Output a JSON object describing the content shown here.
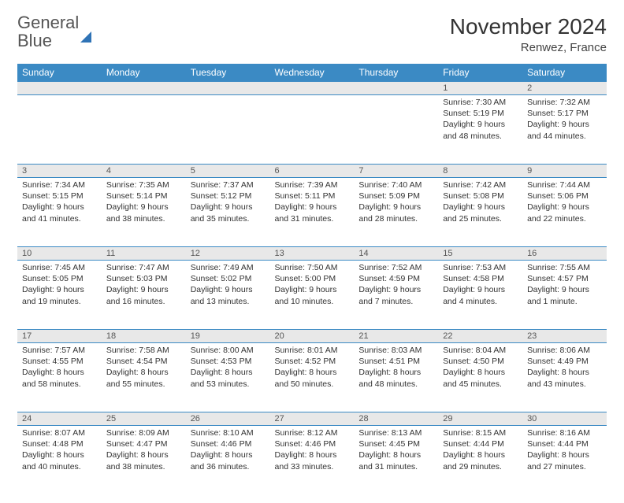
{
  "logo": {
    "word1": "General",
    "word2": "Blue"
  },
  "title": "November 2024",
  "location": "Renwez, France",
  "colors": {
    "header_bg": "#3b8ac4",
    "header_text": "#ffffff",
    "daynum_bg": "#e8e8e8",
    "cell_border": "#3b8ac4",
    "text": "#333333",
    "logo_gray": "#555555",
    "logo_blue": "#2f73b6"
  },
  "weekdays": [
    "Sunday",
    "Monday",
    "Tuesday",
    "Wednesday",
    "Thursday",
    "Friday",
    "Saturday"
  ],
  "weeks": [
    {
      "nums": [
        "",
        "",
        "",
        "",
        "",
        "1",
        "2"
      ],
      "cells": [
        null,
        null,
        null,
        null,
        null,
        {
          "sr": "Sunrise: 7:30 AM",
          "ss": "Sunset: 5:19 PM",
          "d1": "Daylight: 9 hours",
          "d2": "and 48 minutes."
        },
        {
          "sr": "Sunrise: 7:32 AM",
          "ss": "Sunset: 5:17 PM",
          "d1": "Daylight: 9 hours",
          "d2": "and 44 minutes."
        }
      ]
    },
    {
      "nums": [
        "3",
        "4",
        "5",
        "6",
        "7",
        "8",
        "9"
      ],
      "cells": [
        {
          "sr": "Sunrise: 7:34 AM",
          "ss": "Sunset: 5:15 PM",
          "d1": "Daylight: 9 hours",
          "d2": "and 41 minutes."
        },
        {
          "sr": "Sunrise: 7:35 AM",
          "ss": "Sunset: 5:14 PM",
          "d1": "Daylight: 9 hours",
          "d2": "and 38 minutes."
        },
        {
          "sr": "Sunrise: 7:37 AM",
          "ss": "Sunset: 5:12 PM",
          "d1": "Daylight: 9 hours",
          "d2": "and 35 minutes."
        },
        {
          "sr": "Sunrise: 7:39 AM",
          "ss": "Sunset: 5:11 PM",
          "d1": "Daylight: 9 hours",
          "d2": "and 31 minutes."
        },
        {
          "sr": "Sunrise: 7:40 AM",
          "ss": "Sunset: 5:09 PM",
          "d1": "Daylight: 9 hours",
          "d2": "and 28 minutes."
        },
        {
          "sr": "Sunrise: 7:42 AM",
          "ss": "Sunset: 5:08 PM",
          "d1": "Daylight: 9 hours",
          "d2": "and 25 minutes."
        },
        {
          "sr": "Sunrise: 7:44 AM",
          "ss": "Sunset: 5:06 PM",
          "d1": "Daylight: 9 hours",
          "d2": "and 22 minutes."
        }
      ]
    },
    {
      "nums": [
        "10",
        "11",
        "12",
        "13",
        "14",
        "15",
        "16"
      ],
      "cells": [
        {
          "sr": "Sunrise: 7:45 AM",
          "ss": "Sunset: 5:05 PM",
          "d1": "Daylight: 9 hours",
          "d2": "and 19 minutes."
        },
        {
          "sr": "Sunrise: 7:47 AM",
          "ss": "Sunset: 5:03 PM",
          "d1": "Daylight: 9 hours",
          "d2": "and 16 minutes."
        },
        {
          "sr": "Sunrise: 7:49 AM",
          "ss": "Sunset: 5:02 PM",
          "d1": "Daylight: 9 hours",
          "d2": "and 13 minutes."
        },
        {
          "sr": "Sunrise: 7:50 AM",
          "ss": "Sunset: 5:00 PM",
          "d1": "Daylight: 9 hours",
          "d2": "and 10 minutes."
        },
        {
          "sr": "Sunrise: 7:52 AM",
          "ss": "Sunset: 4:59 PM",
          "d1": "Daylight: 9 hours",
          "d2": "and 7 minutes."
        },
        {
          "sr": "Sunrise: 7:53 AM",
          "ss": "Sunset: 4:58 PM",
          "d1": "Daylight: 9 hours",
          "d2": "and 4 minutes."
        },
        {
          "sr": "Sunrise: 7:55 AM",
          "ss": "Sunset: 4:57 PM",
          "d1": "Daylight: 9 hours",
          "d2": "and 1 minute."
        }
      ]
    },
    {
      "nums": [
        "17",
        "18",
        "19",
        "20",
        "21",
        "22",
        "23"
      ],
      "cells": [
        {
          "sr": "Sunrise: 7:57 AM",
          "ss": "Sunset: 4:55 PM",
          "d1": "Daylight: 8 hours",
          "d2": "and 58 minutes."
        },
        {
          "sr": "Sunrise: 7:58 AM",
          "ss": "Sunset: 4:54 PM",
          "d1": "Daylight: 8 hours",
          "d2": "and 55 minutes."
        },
        {
          "sr": "Sunrise: 8:00 AM",
          "ss": "Sunset: 4:53 PM",
          "d1": "Daylight: 8 hours",
          "d2": "and 53 minutes."
        },
        {
          "sr": "Sunrise: 8:01 AM",
          "ss": "Sunset: 4:52 PM",
          "d1": "Daylight: 8 hours",
          "d2": "and 50 minutes."
        },
        {
          "sr": "Sunrise: 8:03 AM",
          "ss": "Sunset: 4:51 PM",
          "d1": "Daylight: 8 hours",
          "d2": "and 48 minutes."
        },
        {
          "sr": "Sunrise: 8:04 AM",
          "ss": "Sunset: 4:50 PM",
          "d1": "Daylight: 8 hours",
          "d2": "and 45 minutes."
        },
        {
          "sr": "Sunrise: 8:06 AM",
          "ss": "Sunset: 4:49 PM",
          "d1": "Daylight: 8 hours",
          "d2": "and 43 minutes."
        }
      ]
    },
    {
      "nums": [
        "24",
        "25",
        "26",
        "27",
        "28",
        "29",
        "30"
      ],
      "cells": [
        {
          "sr": "Sunrise: 8:07 AM",
          "ss": "Sunset: 4:48 PM",
          "d1": "Daylight: 8 hours",
          "d2": "and 40 minutes."
        },
        {
          "sr": "Sunrise: 8:09 AM",
          "ss": "Sunset: 4:47 PM",
          "d1": "Daylight: 8 hours",
          "d2": "and 38 minutes."
        },
        {
          "sr": "Sunrise: 8:10 AM",
          "ss": "Sunset: 4:46 PM",
          "d1": "Daylight: 8 hours",
          "d2": "and 36 minutes."
        },
        {
          "sr": "Sunrise: 8:12 AM",
          "ss": "Sunset: 4:46 PM",
          "d1": "Daylight: 8 hours",
          "d2": "and 33 minutes."
        },
        {
          "sr": "Sunrise: 8:13 AM",
          "ss": "Sunset: 4:45 PM",
          "d1": "Daylight: 8 hours",
          "d2": "and 31 minutes."
        },
        {
          "sr": "Sunrise: 8:15 AM",
          "ss": "Sunset: 4:44 PM",
          "d1": "Daylight: 8 hours",
          "d2": "and 29 minutes."
        },
        {
          "sr": "Sunrise: 8:16 AM",
          "ss": "Sunset: 4:44 PM",
          "d1": "Daylight: 8 hours",
          "d2": "and 27 minutes."
        }
      ]
    }
  ]
}
